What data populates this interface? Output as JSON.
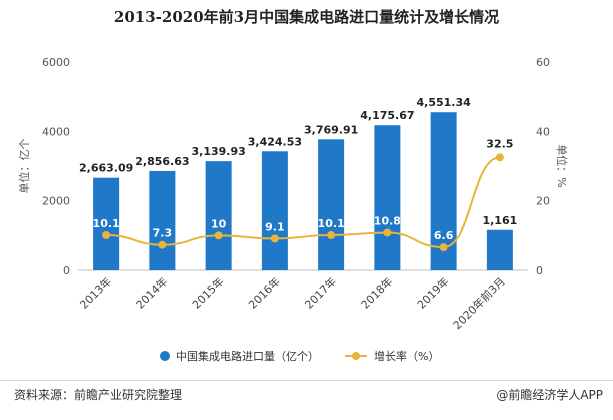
{
  "chart_data": {
    "type": "bar",
    "title": "2013-2020年前3月中国集成电路进口量统计及增长情况",
    "categories": [
      "2013年",
      "2014年",
      "2015年",
      "2016年",
      "2017年",
      "2018年",
      "2019年",
      "2020年前3月"
    ],
    "series": [
      {
        "name": "中国集成电路进口量（亿个）",
        "type": "bar",
        "axis": "left",
        "color": "#1f78c8",
        "values": [
          2663.09,
          2856.63,
          3139.93,
          3424.53,
          3769.91,
          4175.67,
          4551.34,
          1161
        ],
        "labels": [
          "2,663.09",
          "2,856.63",
          "3,139.93",
          "3,424.53",
          "3,769.91",
          "4,175.67",
          "4,551.34",
          "1,161"
        ]
      },
      {
        "name": "增长率（%）",
        "type": "line",
        "axis": "right",
        "color": "#e8b43c",
        "values": [
          10.1,
          7.3,
          10,
          9.1,
          10.1,
          10.8,
          6.6,
          32.5
        ],
        "labels": [
          "10.1",
          "7.3",
          "10",
          "9.1",
          "10.1",
          "10.8",
          "6.6",
          "32.5"
        ]
      }
    ],
    "ylabel_left": "单位：亿个",
    "ylabel_right": "单位：%",
    "ylim_left": [
      0,
      6000
    ],
    "ylim_right": [
      0,
      60
    ],
    "yticks_left": [
      "0",
      "2000",
      "4000",
      "6000"
    ],
    "yticks_right": [
      "0",
      "20",
      "40",
      "60"
    ],
    "legend_position": "bottom",
    "grid": false
  },
  "footer": {
    "source": "资料来源：前瞻产业研究院整理",
    "credit": "@前瞻经济学人APP"
  }
}
